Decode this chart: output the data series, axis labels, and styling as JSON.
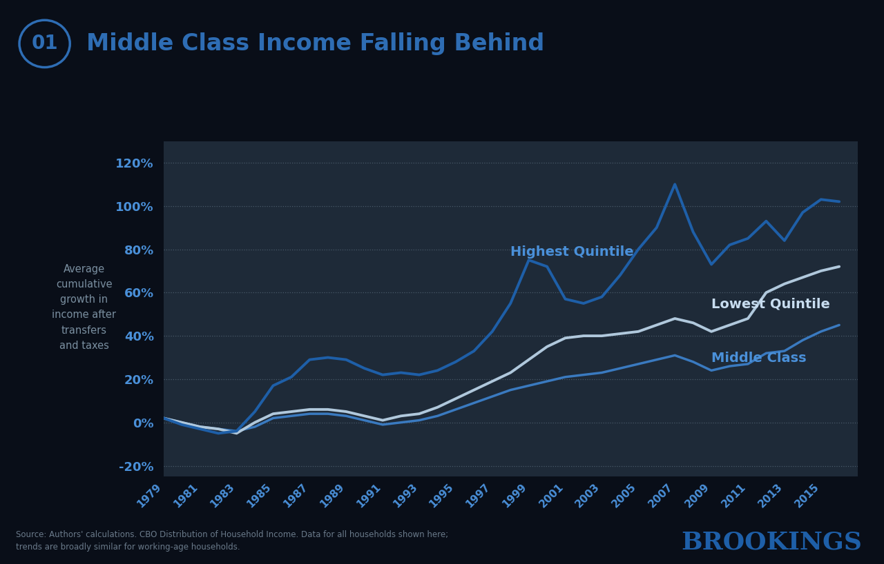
{
  "title": "Middle Class Income Falling Behind",
  "title_number": "01",
  "ylabel_lines": [
    "Average",
    "cumulative",
    "growth in",
    "income after",
    "transfers",
    "and taxes"
  ],
  "source_text": "Source: Authors' calculations. CBO Distribution of Household Income. Data for all households shown here;\ntrends are broadly similar for working-age households.",
  "brookings_text": "BROOKINGS",
  "background_color": "#090e18",
  "plot_bg_color": "#1e2a38",
  "title_color": "#2e6db4",
  "circle_color": "#2e6db4",
  "ylabel_color": "#7a8fa0",
  "years": [
    1979,
    1980,
    1981,
    1982,
    1983,
    1984,
    1985,
    1986,
    1987,
    1988,
    1989,
    1990,
    1991,
    1992,
    1993,
    1994,
    1995,
    1996,
    1997,
    1998,
    1999,
    2000,
    2001,
    2002,
    2003,
    2004,
    2005,
    2006,
    2007,
    2008,
    2009,
    2010,
    2011,
    2012,
    2013,
    2014,
    2015,
    2016
  ],
  "highest_quintile": [
    2,
    -1,
    -3,
    -5,
    -4,
    5,
    17,
    21,
    29,
    30,
    29,
    25,
    22,
    23,
    22,
    24,
    28,
    33,
    42,
    55,
    75,
    72,
    57,
    55,
    58,
    68,
    80,
    90,
    110,
    88,
    73,
    82,
    85,
    93,
    84,
    97,
    103,
    102
  ],
  "lowest_quintile": [
    2,
    0,
    -2,
    -3,
    -5,
    0,
    4,
    5,
    6,
    6,
    5,
    3,
    1,
    3,
    4,
    7,
    11,
    15,
    19,
    23,
    29,
    35,
    39,
    40,
    40,
    41,
    42,
    45,
    48,
    46,
    42,
    45,
    48,
    60,
    64,
    67,
    70,
    72
  ],
  "middle_class": [
    2,
    0,
    -2,
    -3,
    -4,
    -2,
    2,
    3,
    4,
    4,
    3,
    1,
    -1,
    0,
    1,
    3,
    6,
    9,
    12,
    15,
    17,
    19,
    21,
    22,
    23,
    25,
    27,
    29,
    31,
    28,
    24,
    26,
    27,
    32,
    33,
    38,
    42,
    45
  ],
  "highest_color": "#1e5fa8",
  "lowest_color": "#b0c8dc",
  "middle_color": "#3a7ac0",
  "ylim": [
    -25,
    130
  ],
  "yticks": [
    -20,
    0,
    20,
    40,
    60,
    80,
    100,
    120
  ],
  "ytick_color": "#4a90d9",
  "xtick_years": [
    1979,
    1981,
    1983,
    1985,
    1987,
    1989,
    1991,
    1993,
    1995,
    1997,
    1999,
    2001,
    2003,
    2005,
    2007,
    2009,
    2011,
    2013,
    2015
  ],
  "xtick_color": "#4a90d9",
  "grid_color": "#4a5a6a",
  "highest_label": "Highest Quintile",
  "lowest_label": "Lowest Quintile",
  "middle_label": "Middle Class",
  "highest_label_color": "#4a90d9",
  "lowest_label_color": "#c8ddf0",
  "middle_label_color": "#4a90d9",
  "source_color": "#6a7a8a",
  "brookings_color": "#1e5fa8"
}
